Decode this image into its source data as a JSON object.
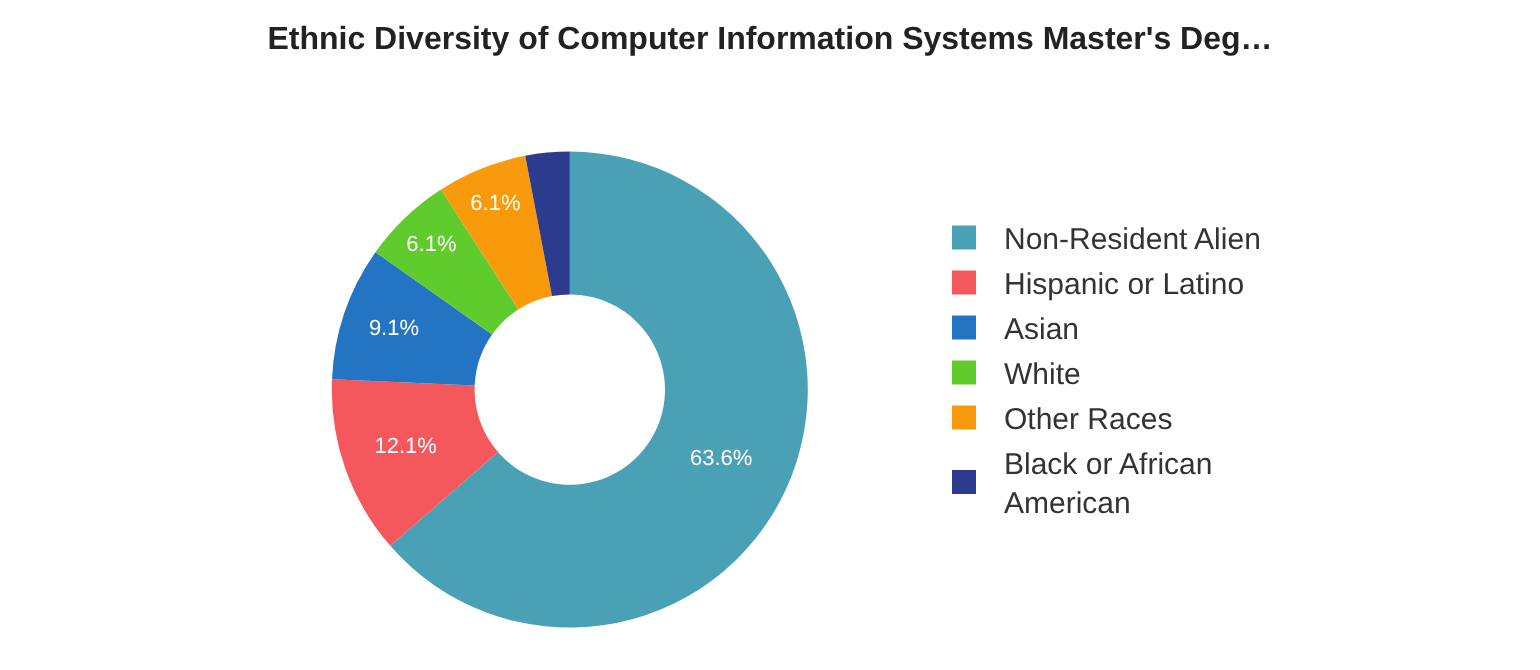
{
  "chart_data": {
    "type": "donut",
    "title": "Ethnic Diversity of Computer Information Systems Master's Deg…",
    "categories": [
      "Non-Resident Alien",
      "Hispanic or Latino",
      "Asian",
      "White",
      "Other Races",
      "Black or African American"
    ],
    "values": [
      63.6,
      12.1,
      9.1,
      6.1,
      6.1,
      3.0
    ],
    "value_labels": [
      "63.6%",
      "12.1%",
      "9.1%",
      "6.1%",
      "6.1%",
      null
    ],
    "colors": [
      "#4aa1b5",
      "#f5585c",
      "#2474c4",
      "#5fcb2d",
      "#f89a0c",
      "#2c3b8d"
    ],
    "legend": "right"
  }
}
